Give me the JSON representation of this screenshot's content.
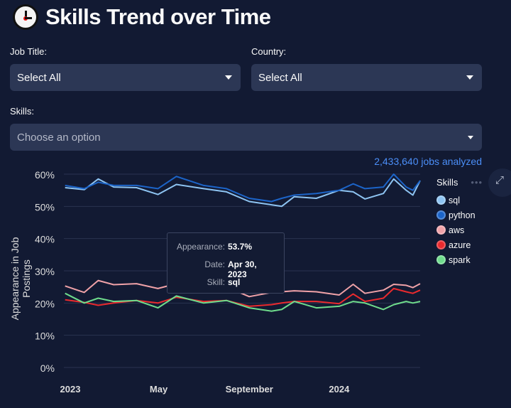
{
  "header": {
    "title": "Skills Trend over Time",
    "icon": "clock-icon"
  },
  "filters": {
    "job_title": {
      "label": "Job Title:",
      "value": "Select All"
    },
    "country": {
      "label": "Country:",
      "value": "Select All"
    },
    "skills": {
      "label": "Skills:",
      "placeholder": "Choose an option"
    }
  },
  "jobs_analyzed": "2,433,640 jobs analyzed",
  "tooltip": {
    "appearance_label": "Appearance:",
    "appearance_value": "53.7%",
    "date_label": "Date:",
    "date_value": "Apr 30, 2023",
    "skill_label": "Skill:",
    "skill_value": "sql"
  },
  "chart_data": {
    "type": "line",
    "ylabel": "Appearance in Job Postings",
    "ylim": [
      0,
      60
    ],
    "yticks": [
      "0%",
      "10%",
      "20%",
      "30%",
      "40%",
      "50%",
      "60%"
    ],
    "xticks": [
      "2023",
      "May",
      "September",
      "2024"
    ],
    "grid": true,
    "legend": {
      "title": "Skills",
      "position": "right"
    },
    "x": [
      "2022-12-25",
      "2023-01-20",
      "2023-02-08",
      "2023-03-01",
      "2023-04-01",
      "2023-04-30",
      "2023-05-25",
      "2023-07-01",
      "2023-08-01",
      "2023-09-01",
      "2023-10-01",
      "2023-10-15",
      "2023-11-01",
      "2023-12-01",
      "2024-01-01",
      "2024-01-20",
      "2024-02-05",
      "2024-03-01",
      "2024-03-15",
      "2024-04-01",
      "2024-04-10",
      "2024-04-20"
    ],
    "series": [
      {
        "name": "sql",
        "color": "#8ec4f2",
        "values": [
          55.8,
          55.2,
          58.5,
          56,
          55.8,
          53.7,
          56.8,
          55.5,
          54.5,
          51.5,
          50.5,
          50,
          53,
          52.5,
          55,
          54.5,
          52.3,
          54,
          58.5,
          55,
          53.5,
          58
        ]
      },
      {
        "name": "python",
        "color": "#1c64c8",
        "values": [
          56.5,
          55.5,
          57.5,
          56.5,
          56.5,
          55.5,
          59.3,
          56.5,
          55.5,
          52.5,
          51.5,
          52.5,
          53.5,
          54,
          55,
          57,
          55.5,
          56,
          60,
          56,
          55,
          58
        ]
      },
      {
        "name": "aws",
        "color": "#f0a2a8",
        "values": [
          25.3,
          23.3,
          27,
          25.7,
          26,
          24.5,
          26,
          24.5,
          25,
          22,
          23.3,
          23.5,
          23.8,
          23.5,
          22.5,
          25.8,
          23,
          24,
          25.8,
          25.5,
          24.8,
          26
        ]
      },
      {
        "name": "azure",
        "color": "#ea2a2e",
        "values": [
          21,
          20.2,
          19.3,
          20,
          20.8,
          20,
          21.8,
          20.5,
          20.8,
          19,
          19.5,
          20,
          20.5,
          20.5,
          19.8,
          22.8,
          20.5,
          21.5,
          24.5,
          23.5,
          23,
          24
        ]
      },
      {
        "name": "spark",
        "color": "#6fdc8c",
        "values": [
          23,
          20,
          21.5,
          20.5,
          20.8,
          18.5,
          22.2,
          20,
          20.8,
          18.5,
          17.5,
          18,
          20.5,
          18.5,
          19,
          20.5,
          20,
          18,
          19.5,
          20.5,
          20,
          20.5
        ]
      }
    ]
  }
}
